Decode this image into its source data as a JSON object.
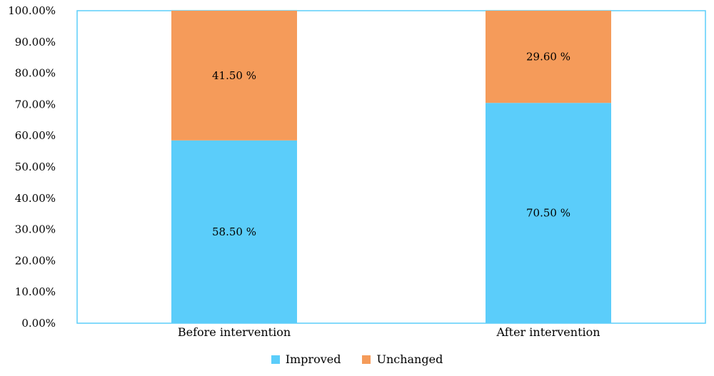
{
  "chart_data": {
    "type": "bar",
    "stacked": true,
    "categories": [
      "Before intervention",
      "After intervention"
    ],
    "series": [
      {
        "name": "Improved",
        "values": [
          58.5,
          70.5
        ],
        "labels": [
          "58.50 %",
          "70.50 %"
        ],
        "color": "#5bcdfa"
      },
      {
        "name": "Unchanged",
        "values": [
          41.5,
          29.6
        ],
        "labels": [
          "41.50 %",
          "29.60 %"
        ],
        "color": "#f59b5a"
      }
    ],
    "ylim": [
      0,
      100
    ],
    "yticks": [
      "0.00%",
      "10.00%",
      "20.00%",
      "30.00%",
      "40.00%",
      "50.00%",
      "60.00%",
      "70.00%",
      "80.00%",
      "90.00%",
      "100.00%"
    ],
    "plot_border_color": "#5bcdfa",
    "legend_position": "bottom",
    "grid": false
  }
}
